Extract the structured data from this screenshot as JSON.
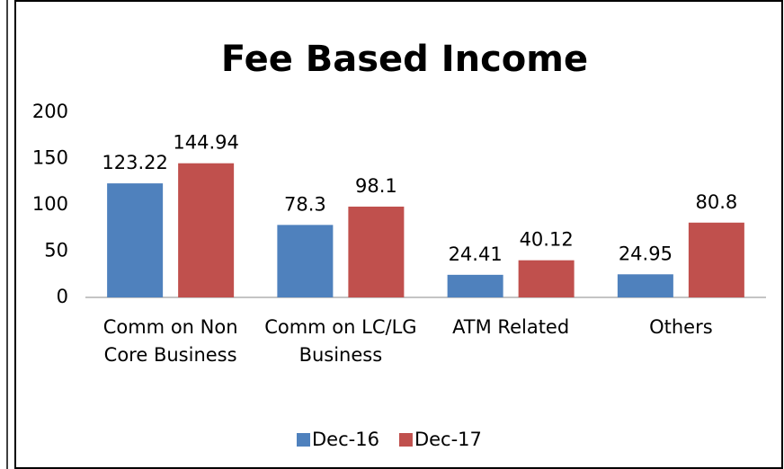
{
  "chart_data": {
    "type": "bar",
    "title": "Fee Based Income",
    "categories": [
      "Comm on Non Core Business",
      "Comm on LC/LG Business",
      "ATM Related",
      "Others"
    ],
    "series": [
      {
        "name": "Dec-16",
        "color": "#4f81bd",
        "values": [
          123.22,
          78.3,
          24.41,
          24.95
        ]
      },
      {
        "name": "Dec-17",
        "color": "#c0504d",
        "values": [
          144.94,
          98.1,
          40.12,
          80.8
        ]
      }
    ],
    "ylim": [
      0,
      200
    ],
    "yticks": [
      0,
      50,
      100,
      150,
      200
    ],
    "grid": false,
    "legend": "bottom"
  }
}
